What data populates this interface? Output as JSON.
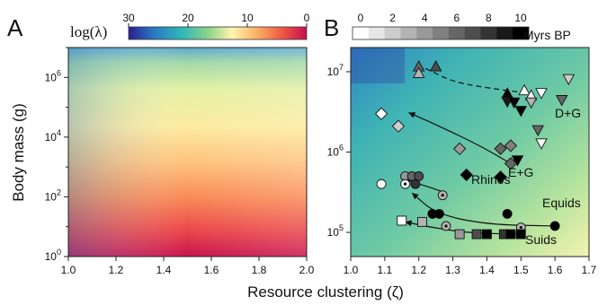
{
  "figure": {
    "xlabel": "Resource clustering (ζ)",
    "ylabel": "Body mass (g)"
  },
  "panel_a": {
    "letter": "A",
    "colorbar_title": "log(λ)",
    "colorbar_ticks": [
      "30",
      "20",
      "10",
      "0"
    ],
    "colors": {
      "lambda_scale": [
        "#2c1d8f",
        "#2979c3",
        "#2fb7b8",
        "#8fd48a",
        "#fff5b0",
        "#fbb165",
        "#ef5a44",
        "#c50f4f"
      ]
    }
  },
  "panel_b": {
    "letter": "B",
    "colorbar_ticks": [
      "0",
      "2",
      "4",
      "6",
      "8",
      "10"
    ],
    "colorbar_unit": "Myrs BP",
    "group_labels": [
      "E+G",
      "D+G",
      "Rhinos",
      "Equids",
      "Suids"
    ],
    "colors": {
      "age_scale": [
        "#ffffff",
        "#000000"
      ]
    }
  },
  "chart_data": [
    {
      "panel": "A",
      "type": "heatmap",
      "xlabel": "Resource clustering (ζ)",
      "ylabel": "Body mass (g)",
      "xlim": [
        1.0,
        2.0
      ],
      "x_ticks": [
        "1.0",
        "1.2",
        "1.4",
        "1.6",
        "1.8",
        "2.0"
      ],
      "y_scale": "log",
      "ylim": [
        1,
        10000000
      ],
      "y_ticks": [
        "10^0",
        "10^2",
        "10^4",
        "10^6"
      ],
      "colorbar": {
        "label": "log(λ)",
        "range": [
          30,
          0
        ],
        "ticks": [
          30,
          20,
          10,
          0
        ]
      },
      "legend": "top"
    },
    {
      "panel": "B",
      "type": "scatter",
      "xlim": [
        1.0,
        1.7
      ],
      "x_ticks": [
        "1.0",
        "1.1",
        "1.2",
        "1.3",
        "1.4",
        "1.5",
        "1.6",
        "1.7"
      ],
      "y_scale": "log",
      "ylim": [
        50000,
        20000000
      ],
      "y_ticks": [
        "10^5",
        "10^6",
        "10^7"
      ],
      "colorbar": {
        "label": "Myrs BP",
        "range": [
          0,
          10
        ],
        "ticks": [
          0,
          2,
          4,
          6,
          8,
          10
        ]
      },
      "series": [
        {
          "name": "E+G",
          "marker": "triangle-up",
          "points": [
            {
              "x": 1.2,
              "y": 11500000,
              "age": 6
            },
            {
              "x": 1.2,
              "y": 9500000,
              "age": 3
            },
            {
              "x": 1.25,
              "y": 11500000,
              "age": 7
            },
            {
              "x": 1.51,
              "y": 5800000,
              "age": 0
            },
            {
              "x": 1.53,
              "y": 5000000,
              "age": 0.5
            },
            {
              "x": 1.46,
              "y": 5300000,
              "age": 10
            }
          ]
        },
        {
          "name": "D+G",
          "marker": "triangle-down",
          "points": [
            {
              "x": 1.64,
              "y": 8200000,
              "age": 2
            },
            {
              "x": 1.62,
              "y": 4500000,
              "age": 6
            },
            {
              "x": 1.56,
              "y": 5500000,
              "age": 0
            },
            {
              "x": 1.53,
              "y": 4200000,
              "age": 3
            },
            {
              "x": 1.46,
              "y": 4300000,
              "age": 9
            },
            {
              "x": 1.48,
              "y": 4200000,
              "age": 10
            },
            {
              "x": 1.5,
              "y": 3300000,
              "age": 10
            },
            {
              "x": 1.55,
              "y": 1900000,
              "age": 6
            },
            {
              "x": 1.56,
              "y": 1300000,
              "age": 0
            },
            {
              "x": 1.49,
              "y": 800000,
              "age": 10
            }
          ]
        },
        {
          "name": "Rhinos",
          "marker": "diamond",
          "points": [
            {
              "x": 1.09,
              "y": 3000000,
              "age": 0
            },
            {
              "x": 1.14,
              "y": 2100000,
              "age": 2
            },
            {
              "x": 1.32,
              "y": 1100000,
              "age": 4
            },
            {
              "x": 1.44,
              "y": 1100000,
              "age": 6
            },
            {
              "x": 1.47,
              "y": 1200000,
              "age": 5
            },
            {
              "x": 1.47,
              "y": 720000,
              "age": 6
            },
            {
              "x": 1.34,
              "y": 520000,
              "age": 10
            },
            {
              "x": 1.44,
              "y": 490000,
              "age": 10
            }
          ]
        },
        {
          "name": "Equids",
          "marker": "circle",
          "points": [
            {
              "x": 1.09,
              "y": 400000,
              "age": 0
            },
            {
              "x": 1.16,
              "y": 500000,
              "age": 4
            },
            {
              "x": 1.18,
              "y": 500000,
              "age": 6
            },
            {
              "x": 1.2,
              "y": 500000,
              "age": 7
            },
            {
              "x": 1.16,
              "y": 400000,
              "age": 0.5
            },
            {
              "x": 1.19,
              "y": 400000,
              "age": 8
            },
            {
              "x": 1.27,
              "y": 290000,
              "age": 3
            },
            {
              "x": 1.24,
              "y": 170000,
              "age": 10
            },
            {
              "x": 1.26,
              "y": 170000,
              "age": 10
            },
            {
              "x": 1.28,
              "y": 120000,
              "age": 3
            },
            {
              "x": 1.46,
              "y": 170000,
              "age": 10
            },
            {
              "x": 1.5,
              "y": 115000,
              "age": 3
            },
            {
              "x": 1.6,
              "y": 120000,
              "age": 10
            }
          ]
        },
        {
          "name": "Suids",
          "marker": "square",
          "points": [
            {
              "x": 1.15,
              "y": 140000,
              "age": 0
            },
            {
              "x": 1.21,
              "y": 135000,
              "age": 3
            },
            {
              "x": 1.32,
              "y": 95000,
              "age": 4
            },
            {
              "x": 1.37,
              "y": 95000,
              "age": 7
            },
            {
              "x": 1.4,
              "y": 95000,
              "age": 10
            },
            {
              "x": 1.45,
              "y": 95000,
              "age": 8
            },
            {
              "x": 1.47,
              "y": 95000,
              "age": 10
            },
            {
              "x": 1.5,
              "y": 95000,
              "age": 10
            }
          ]
        }
      ],
      "curves": [
        {
          "name": "E+G",
          "style": "dashed",
          "points": [
            [
              1.22,
              11000000
            ],
            [
              1.3,
              7500000
            ],
            [
              1.4,
              6300000
            ],
            [
              1.52,
              5400000
            ]
          ]
        },
        {
          "name": "Rhinos",
          "style": "solid-arrow",
          "points": [
            [
              1.47,
              720000
            ],
            [
              1.38,
              1200000
            ],
            [
              1.25,
              2200000
            ],
            [
              1.17,
              3100000
            ]
          ]
        },
        {
          "name": "Equids",
          "style": "solid-arrow",
          "points": [
            [
              1.27,
              320000
            ],
            [
              1.22,
              380000
            ],
            [
              1.18,
              420000
            ],
            [
              1.16,
              480000
            ]
          ]
        },
        {
          "name": "Equids",
          "style": "solid-arrow",
          "points": [
            [
              1.6,
              120000
            ],
            [
              1.4,
              125000
            ],
            [
              1.25,
              170000
            ],
            [
              1.18,
              310000
            ]
          ]
        },
        {
          "name": "Suids",
          "style": "solid-arrow",
          "points": [
            [
              1.5,
              95000
            ],
            [
              1.35,
              98000
            ],
            [
              1.24,
              115000
            ],
            [
              1.16,
              135000
            ]
          ]
        }
      ]
    }
  ]
}
